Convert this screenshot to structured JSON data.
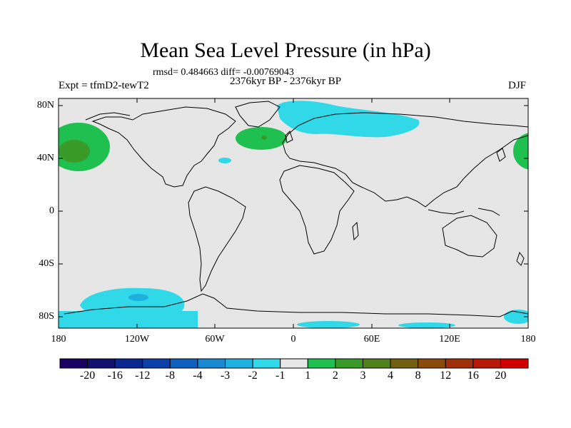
{
  "title": "Mean Sea Level Pressure (in hPa)",
  "stats_line": "rmsd= 0.484663 diff= -0.00769043",
  "period": "2376kyr BP - 2376kyr BP",
  "experiment": "Expt = tfmD2-tewT2",
  "season": "DJF",
  "lat_labels": [
    "80N",
    "40N",
    "0",
    "40S",
    "80S"
  ],
  "lon_labels": [
    "180",
    "120W",
    "60W",
    "0",
    "60E",
    "120E",
    "180"
  ],
  "colorbar": {
    "colors": [
      "#1a0060",
      "#10106e",
      "#0a2890",
      "#0a40a8",
      "#1060c0",
      "#1888d0",
      "#20b0e0",
      "#30d8e8",
      "#e6e6e6",
      "#20c050",
      "#3a9a28",
      "#50801a",
      "#706010",
      "#8a4a0a",
      "#a03008",
      "#b81806",
      "#d00000"
    ],
    "labels": [
      "-20",
      "-16",
      "-12",
      "-8",
      "-4",
      "-3",
      "-2",
      "-1",
      "1",
      "2",
      "3",
      "4",
      "8",
      "12",
      "16",
      "20"
    ]
  },
  "colors": {
    "background": "#e6e6e6",
    "positive_weak": "#20c050",
    "positive_mid": "#3a9a28",
    "positive_strong": "#50801a",
    "negative_weak": "#30d8e8",
    "negative_mid": "#20b0e0",
    "negative_strong": "#1888d0"
  }
}
